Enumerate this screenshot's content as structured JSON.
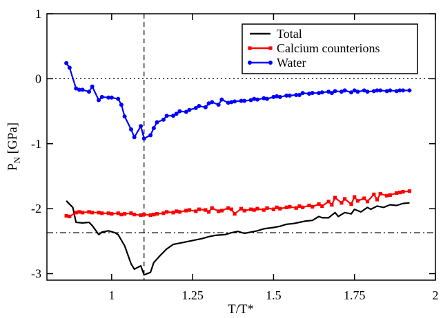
{
  "chart_data": {
    "type": "line",
    "xlabel": "T/T*",
    "ylabel_main": "P",
    "ylabel_sub": "N",
    "ylabel_tail": " [GPa]",
    "xlim": [
      0.8,
      2.0
    ],
    "ylim": [
      -3.1,
      1.0
    ],
    "x_ticks": [
      {
        "value": 1.0,
        "label": "1"
      },
      {
        "value": 1.25,
        "label": "1.25"
      },
      {
        "value": 1.5,
        "label": "1.5"
      },
      {
        "value": 1.75,
        "label": "1.75"
      },
      {
        "value": 2.0,
        "label": "2"
      }
    ],
    "y_ticks": [
      {
        "value": 1,
        "label": "1"
      },
      {
        "value": 0,
        "label": "0"
      },
      {
        "value": -1,
        "label": "-1"
      },
      {
        "value": -2,
        "label": "-2"
      },
      {
        "value": -3,
        "label": "-3"
      }
    ],
    "reference_lines": [
      {
        "orientation": "horizontal",
        "value": 0,
        "style": "dotted"
      },
      {
        "orientation": "horizontal",
        "value": -2.37,
        "style": "dashdot"
      },
      {
        "orientation": "vertical",
        "value": 1.1,
        "style": "dashed"
      }
    ],
    "legend_position": "top-right",
    "series": [
      {
        "name": "Total",
        "color": "#000000",
        "marker": "none",
        "points": [
          [
            0.86,
            -1.88
          ],
          [
            0.88,
            -1.98
          ],
          [
            0.89,
            -2.21
          ],
          [
            0.91,
            -2.22
          ],
          [
            0.93,
            -2.21
          ],
          [
            0.94,
            -2.26
          ],
          [
            0.96,
            -2.4
          ],
          [
            0.97,
            -2.36
          ],
          [
            0.99,
            -2.34
          ],
          [
            1.01,
            -2.37
          ],
          [
            1.02,
            -2.4
          ],
          [
            1.04,
            -2.57
          ],
          [
            1.06,
            -2.85
          ],
          [
            1.07,
            -2.93
          ],
          [
            1.09,
            -2.88
          ],
          [
            1.1,
            -3.02
          ],
          [
            1.12,
            -2.98
          ],
          [
            1.13,
            -2.83
          ],
          [
            1.15,
            -2.72
          ],
          [
            1.17,
            -2.62
          ],
          [
            1.19,
            -2.55
          ],
          [
            1.22,
            -2.52
          ],
          [
            1.25,
            -2.49
          ],
          [
            1.28,
            -2.46
          ],
          [
            1.3,
            -2.43
          ],
          [
            1.32,
            -2.41
          ],
          [
            1.35,
            -2.4
          ],
          [
            1.37,
            -2.37
          ],
          [
            1.39,
            -2.35
          ],
          [
            1.41,
            -2.38
          ],
          [
            1.43,
            -2.36
          ],
          [
            1.45,
            -2.34
          ],
          [
            1.47,
            -2.31
          ],
          [
            1.5,
            -2.29
          ],
          [
            1.52,
            -2.27
          ],
          [
            1.54,
            -2.24
          ],
          [
            1.56,
            -2.23
          ],
          [
            1.58,
            -2.21
          ],
          [
            1.6,
            -2.19
          ],
          [
            1.62,
            -2.18
          ],
          [
            1.64,
            -2.12
          ],
          [
            1.65,
            -2.14
          ],
          [
            1.67,
            -2.14
          ],
          [
            1.69,
            -2.06
          ],
          [
            1.7,
            -2.12
          ],
          [
            1.72,
            -2.06
          ],
          [
            1.74,
            -2.08
          ],
          [
            1.75,
            -2.01
          ],
          [
            1.77,
            -2.05
          ],
          [
            1.79,
            -1.98
          ],
          [
            1.8,
            -2.01
          ],
          [
            1.82,
            -1.96
          ],
          [
            1.84,
            -1.98
          ],
          [
            1.86,
            -1.94
          ],
          [
            1.88,
            -1.95
          ],
          [
            1.9,
            -1.92
          ],
          [
            1.92,
            -1.91
          ]
        ]
      },
      {
        "name": "Calcium counterions",
        "color": "#ff0000",
        "marker": "square",
        "points": [
          [
            0.86,
            -2.11
          ],
          [
            0.87,
            -2.12
          ],
          [
            0.89,
            -2.06
          ],
          [
            0.9,
            -2.05
          ],
          [
            0.91,
            -2.06
          ],
          [
            0.93,
            -2.05
          ],
          [
            0.94,
            -2.06
          ],
          [
            0.96,
            -2.06
          ],
          [
            0.97,
            -2.07
          ],
          [
            0.99,
            -2.07
          ],
          [
            1.0,
            -2.08
          ],
          [
            1.02,
            -2.07
          ],
          [
            1.03,
            -2.09
          ],
          [
            1.04,
            -2.08
          ],
          [
            1.06,
            -2.07
          ],
          [
            1.07,
            -2.09
          ],
          [
            1.09,
            -2.1
          ],
          [
            1.1,
            -2.09
          ],
          [
            1.12,
            -2.1
          ],
          [
            1.13,
            -2.09
          ],
          [
            1.14,
            -2.08
          ],
          [
            1.16,
            -2.07
          ],
          [
            1.17,
            -2.05
          ],
          [
            1.19,
            -2.06
          ],
          [
            1.2,
            -2.04
          ],
          [
            1.21,
            -2.05
          ],
          [
            1.23,
            -2.03
          ],
          [
            1.24,
            -2.02
          ],
          [
            1.26,
            -2.04
          ],
          [
            1.27,
            -2.01
          ],
          [
            1.29,
            -2.02
          ],
          [
            1.3,
            -2.05
          ],
          [
            1.31,
            -1.99
          ],
          [
            1.33,
            -2.04
          ],
          [
            1.34,
            -2.03
          ],
          [
            1.36,
            -1.99
          ],
          [
            1.37,
            -2.01
          ],
          [
            1.38,
            -2.08
          ],
          [
            1.4,
            -2.0
          ],
          [
            1.41,
            -2.03
          ],
          [
            1.43,
            -2.01
          ],
          [
            1.44,
            -2.02
          ],
          [
            1.45,
            -2.0
          ],
          [
            1.47,
            -2.02
          ],
          [
            1.48,
            -1.99
          ],
          [
            1.5,
            -2.01
          ],
          [
            1.51,
            -1.98
          ],
          [
            1.52,
            -2.0
          ],
          [
            1.54,
            -1.98
          ],
          [
            1.55,
            -1.97
          ],
          [
            1.57,
            -1.99
          ],
          [
            1.58,
            -1.96
          ],
          [
            1.59,
            -1.98
          ],
          [
            1.61,
            -1.95
          ],
          [
            1.62,
            -1.97
          ],
          [
            1.64,
            -1.93
          ],
          [
            1.65,
            -1.96
          ],
          [
            1.67,
            -1.89
          ],
          [
            1.68,
            -1.94
          ],
          [
            1.69,
            -1.83
          ],
          [
            1.71,
            -1.91
          ],
          [
            1.72,
            -1.85
          ],
          [
            1.74,
            -1.93
          ],
          [
            1.75,
            -1.82
          ],
          [
            1.76,
            -1.88
          ],
          [
            1.78,
            -1.84
          ],
          [
            1.79,
            -1.89
          ],
          [
            1.81,
            -1.78
          ],
          [
            1.82,
            -1.86
          ],
          [
            1.83,
            -1.77
          ],
          [
            1.85,
            -1.8
          ],
          [
            1.86,
            -1.79
          ],
          [
            1.88,
            -1.76
          ],
          [
            1.89,
            -1.75
          ],
          [
            1.9,
            -1.74
          ],
          [
            1.92,
            -1.73
          ]
        ]
      },
      {
        "name": "Water",
        "color": "#0000ff",
        "marker": "circle",
        "points": [
          [
            0.86,
            0.24
          ],
          [
            0.87,
            0.17
          ],
          [
            0.89,
            -0.15
          ],
          [
            0.9,
            -0.17
          ],
          [
            0.91,
            -0.17
          ],
          [
            0.93,
            -0.2
          ],
          [
            0.94,
            -0.12
          ],
          [
            0.96,
            -0.33
          ],
          [
            0.97,
            -0.28
          ],
          [
            0.99,
            -0.29
          ],
          [
            1.0,
            -0.29
          ],
          [
            1.02,
            -0.31
          ],
          [
            1.03,
            -0.4
          ],
          [
            1.04,
            -0.58
          ],
          [
            1.06,
            -0.78
          ],
          [
            1.07,
            -0.9
          ],
          [
            1.09,
            -0.73
          ],
          [
            1.1,
            -0.92
          ],
          [
            1.12,
            -0.87
          ],
          [
            1.13,
            -0.76
          ],
          [
            1.14,
            -0.67
          ],
          [
            1.16,
            -0.63
          ],
          [
            1.17,
            -0.57
          ],
          [
            1.19,
            -0.57
          ],
          [
            1.2,
            -0.54
          ],
          [
            1.21,
            -0.5
          ],
          [
            1.23,
            -0.51
          ],
          [
            1.24,
            -0.48
          ],
          [
            1.26,
            -0.45
          ],
          [
            1.27,
            -0.42
          ],
          [
            1.29,
            -0.44
          ],
          [
            1.3,
            -0.38
          ],
          [
            1.31,
            -0.36
          ],
          [
            1.33,
            -0.4
          ],
          [
            1.34,
            -0.32
          ],
          [
            1.36,
            -0.37
          ],
          [
            1.37,
            -0.36
          ],
          [
            1.38,
            -0.35
          ],
          [
            1.4,
            -0.34
          ],
          [
            1.41,
            -0.34
          ],
          [
            1.43,
            -0.33
          ],
          [
            1.44,
            -0.31
          ],
          [
            1.45,
            -0.32
          ],
          [
            1.47,
            -0.3
          ],
          [
            1.48,
            -0.31
          ],
          [
            1.5,
            -0.28
          ],
          [
            1.51,
            -0.27
          ],
          [
            1.52,
            -0.28
          ],
          [
            1.54,
            -0.26
          ],
          [
            1.55,
            -0.26
          ],
          [
            1.57,
            -0.25
          ],
          [
            1.58,
            -0.25
          ],
          [
            1.59,
            -0.22
          ],
          [
            1.61,
            -0.23
          ],
          [
            1.62,
            -0.22
          ],
          [
            1.64,
            -0.22
          ],
          [
            1.65,
            -0.21
          ],
          [
            1.67,
            -0.2
          ],
          [
            1.68,
            -0.22
          ],
          [
            1.69,
            -0.19
          ],
          [
            1.71,
            -0.2
          ],
          [
            1.72,
            -0.18
          ],
          [
            1.74,
            -0.21
          ],
          [
            1.75,
            -0.18
          ],
          [
            1.76,
            -0.2
          ],
          [
            1.78,
            -0.18
          ],
          [
            1.79,
            -0.2
          ],
          [
            1.81,
            -0.19
          ],
          [
            1.82,
            -0.18
          ],
          [
            1.83,
            -0.18
          ],
          [
            1.85,
            -0.19
          ],
          [
            1.86,
            -0.18
          ],
          [
            1.88,
            -0.19
          ],
          [
            1.89,
            -0.18
          ],
          [
            1.9,
            -0.18
          ],
          [
            1.92,
            -0.18
          ]
        ]
      }
    ]
  }
}
